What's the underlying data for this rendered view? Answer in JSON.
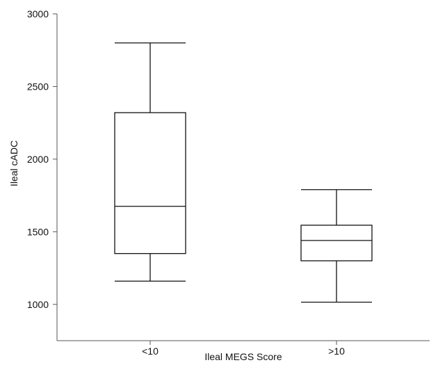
{
  "chart_data": {
    "type": "box",
    "xlabel": "Ileal MEGS Score",
    "ylabel": "Ileal cADC",
    "ylim": [
      750,
      3000
    ],
    "yticks": [
      1000,
      1500,
      2000,
      2500,
      3000
    ],
    "categories": [
      "<10",
      ">10"
    ],
    "boxes": [
      {
        "category": "<10",
        "whisker_low": 1160,
        "q1": 1350,
        "median": 1675,
        "q3": 2320,
        "whisker_high": 2800
      },
      {
        "category": ">10",
        "whisker_low": 1015,
        "q1": 1300,
        "median": 1440,
        "q3": 1545,
        "whisker_high": 1790
      }
    ],
    "grid": false,
    "legend": "none"
  }
}
